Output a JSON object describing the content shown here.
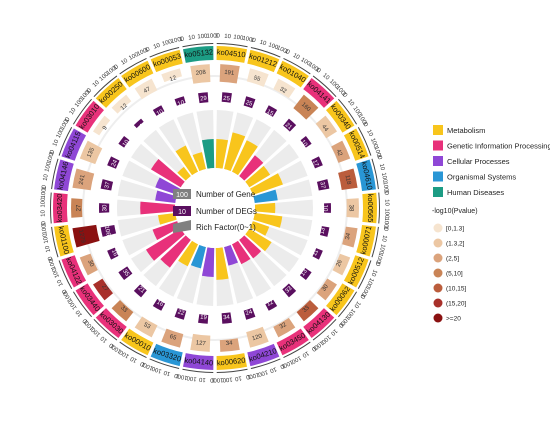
{
  "chart_data": {
    "type": "circos-enrichment",
    "categories": [
      "ko04510",
      "ko01212",
      "ko01040",
      "ko04141",
      "ko00340",
      "ko00514",
      "ko04610",
      "ko00565",
      "ko00071",
      "ko00512",
      "ko00062",
      "ko04130",
      "ko03450",
      "ko04210",
      "ko00620",
      "ko04140",
      "ko03320",
      "ko00010",
      "ko03030",
      "ko03440",
      "ko04122",
      "ko01100",
      "ko03420",
      "ko04146",
      "ko04115",
      "ko03010",
      "ko00250",
      "ko00600",
      "ko00053",
      "ko05132"
    ],
    "class_names": [
      "Metabolism",
      "Metabolism",
      "Metabolism",
      "Genetic Information Processing",
      "Metabolism",
      "Metabolism",
      "Organismal Systems",
      "Metabolism",
      "Metabolism",
      "Metabolism",
      "Metabolism",
      "Genetic Information Processing",
      "Genetic Information Processing",
      "Cellular Processes",
      "Metabolism",
      "Cellular Processes",
      "Organismal Systems",
      "Metabolism",
      "Genetic Information Processing",
      "Genetic Information Processing",
      "Genetic Information Processing",
      "Metabolism",
      "Genetic Information Processing",
      "Cellular Processes",
      "Cellular Processes",
      "Genetic Information Processing",
      "Metabolism",
      "Metabolism",
      "Metabolism",
      "Human Diseases"
    ],
    "gene_numbers": [
      191,
      55,
      32,
      160,
      44,
      42,
      118,
      38,
      34,
      26,
      30,
      33,
      32,
      120,
      34,
      127,
      65,
      53,
      33,
      27,
      30,
      1279,
      27,
      241,
      135,
      9,
      12,
      47,
      12,
      208
    ],
    "deg_numbers": [
      25,
      25,
      15,
      21,
      10,
      17,
      37,
      10,
      13,
      11,
      13,
      33,
      12,
      24,
      34,
      19,
      22,
      16,
      21,
      35,
      16,
      106,
      30,
      37,
      24,
      10,
      4,
      10,
      10,
      29
    ],
    "rich_factor": [
      0.5,
      0.65,
      0.6,
      0.45,
      0.42,
      0.55,
      0.4,
      0.35,
      0.48,
      0.3,
      0.45,
      0.4,
      0.38,
      0.33,
      0.55,
      0.5,
      0.38,
      0.42,
      0.6,
      0.7,
      0.45,
      0.3,
      0.6,
      0.35,
      0.4,
      0.6,
      0.2,
      0.5,
      0.3,
      0.5
    ],
    "pvalue_level": [
      3,
      1,
      1,
      4,
      2,
      3,
      5,
      2,
      3,
      2,
      3,
      5,
      3,
      2,
      3,
      2,
      3,
      2,
      4,
      6,
      3,
      7,
      4,
      3,
      2,
      1,
      1,
      1,
      1,
      2
    ],
    "ticks": [
      "1",
      "10",
      "100",
      "1000"
    ],
    "legend": {
      "categories": [
        "Metabolism",
        "Genetic Information Processing",
        "Cellular Processes",
        "Organismal Systems",
        "Human Diseases"
      ],
      "category_colors": [
        "#f8c51c",
        "#e8317a",
        "#8f47d6",
        "#2996d5",
        "#1c9c84"
      ],
      "pvalue_title": "-log10(Pvalue)",
      "pvalue_bins": [
        "[0,1.3]",
        "(1.3,2]",
        "(2,5]",
        "(5,10]",
        "(10,15]",
        "(15,20]",
        ">=20"
      ],
      "pvalue_colors": [
        "#f6e4cf",
        "#ecc7a3",
        "#dba37c",
        "#c98456",
        "#bb5d3c",
        "#a8302a",
        "#8a1111"
      ]
    },
    "center_legend": {
      "gene_label": "Number of Gene",
      "gene_sample": "100",
      "deg_label": "Number of DEGs",
      "deg_sample": "10",
      "rich_label": "Rich Factor(0~1)"
    }
  }
}
